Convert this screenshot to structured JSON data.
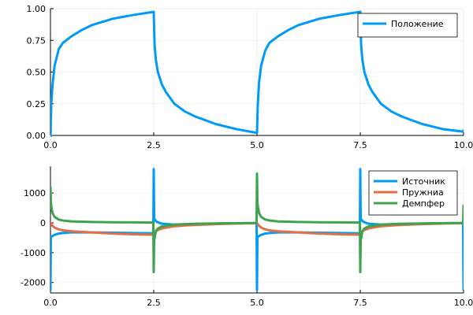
{
  "chart_data": [
    {
      "type": "line",
      "xlim": [
        0,
        10
      ],
      "ylim": [
        0,
        1
      ],
      "xticks": [
        "0.0",
        "2.5",
        "5.0",
        "7.5",
        "10.0"
      ],
      "yticks": [
        "0.00",
        "0.25",
        "0.50",
        "0.75",
        "1.00"
      ],
      "grid": true,
      "legend_position": "top-right",
      "series": [
        {
          "name": "Положение",
          "color": "#009af9",
          "x": [
            0.0,
            0.02,
            0.05,
            0.1,
            0.2,
            0.3,
            0.5,
            0.75,
            1.0,
            1.5,
            2.0,
            2.5,
            2.52,
            2.55,
            2.6,
            2.7,
            2.8,
            3.0,
            3.25,
            3.5,
            4.0,
            4.5,
            5.0,
            5.02,
            5.05,
            5.1,
            5.2,
            5.3,
            5.5,
            5.75,
            6.0,
            6.5,
            7.0,
            7.5,
            7.52,
            7.55,
            7.6,
            7.7,
            7.8,
            8.0,
            8.25,
            8.5,
            9.0,
            9.5,
            9.98,
            10.0
          ],
          "y": [
            -0.03,
            0.25,
            0.4,
            0.55,
            0.68,
            0.73,
            0.78,
            0.83,
            0.87,
            0.92,
            0.95,
            0.975,
            0.72,
            0.6,
            0.5,
            0.4,
            0.34,
            0.25,
            0.19,
            0.15,
            0.09,
            0.05,
            0.02,
            0.25,
            0.42,
            0.55,
            0.67,
            0.73,
            0.78,
            0.83,
            0.87,
            0.92,
            0.95,
            0.975,
            0.72,
            0.6,
            0.5,
            0.4,
            0.34,
            0.25,
            0.19,
            0.15,
            0.09,
            0.05,
            0.03,
            0.04
          ]
        }
      ]
    },
    {
      "type": "line",
      "xlim": [
        0,
        10
      ],
      "ylim": [
        -2350,
        1900
      ],
      "xticks": [
        "0.0",
        "2.5",
        "5.0",
        "7.5",
        "10.0"
      ],
      "yticks": [
        "-2000",
        "-1000",
        "0",
        "1000"
      ],
      "grid": true,
      "legend_position": "top-right",
      "series": [
        {
          "name": "Источник",
          "color": "#009af9",
          "x": [
            0.0,
            0.01,
            0.02,
            0.05,
            0.1,
            0.2,
            0.3,
            0.5,
            1.0,
            1.5,
            2.0,
            2.49,
            2.5,
            2.51,
            2.55,
            2.6,
            2.7,
            3.0,
            3.5,
            4.0,
            4.5,
            4.99,
            5.0,
            5.01,
            5.02,
            5.05,
            5.1,
            5.2,
            5.3,
            5.5,
            6.0,
            6.5,
            7.0,
            7.49,
            7.5,
            7.51,
            7.55,
            7.6,
            7.7,
            8.0,
            8.5,
            9.0,
            9.5,
            9.99,
            10.0
          ],
          "y": [
            -2250,
            -500,
            -470,
            -440,
            -400,
            -360,
            -340,
            -320,
            -320,
            -330,
            -340,
            -350,
            1800,
            150,
            60,
            20,
            -30,
            -60,
            -40,
            -25,
            -15,
            -10,
            -2250,
            -500,
            -470,
            -440,
            -400,
            -360,
            -340,
            -320,
            -320,
            -330,
            -340,
            -350,
            1800,
            150,
            60,
            20,
            -30,
            -60,
            -40,
            -25,
            -15,
            -10,
            -2250
          ]
        },
        {
          "name": "Пружниа",
          "color": "#e26f46",
          "x": [
            0.0,
            0.05,
            0.1,
            0.2,
            0.3,
            0.5,
            0.75,
            1.0,
            1.5,
            2.0,
            2.5,
            2.55,
            2.6,
            2.7,
            2.8,
            3.0,
            3.25,
            3.5,
            4.0,
            4.5,
            5.0,
            5.05,
            5.1,
            5.2,
            5.3,
            5.5,
            5.75,
            6.0,
            6.5,
            7.0,
            7.5,
            7.55,
            7.6,
            7.7,
            7.8,
            8.0,
            8.25,
            8.5,
            9.0,
            9.5,
            10.0
          ],
          "y": [
            0,
            -100,
            -160,
            -220,
            -250,
            -280,
            -300,
            -320,
            -360,
            -385,
            -400,
            -290,
            -240,
            -190,
            -160,
            -115,
            -90,
            -70,
            -45,
            -25,
            -10,
            -100,
            -160,
            -220,
            -250,
            -280,
            -300,
            -320,
            -360,
            -385,
            -400,
            -290,
            -240,
            -190,
            -160,
            -115,
            -90,
            -70,
            -45,
            -25,
            -10
          ]
        },
        {
          "name": "Демпфер",
          "color": "#3da44d",
          "x": [
            0.0,
            0.01,
            0.02,
            0.05,
            0.1,
            0.2,
            0.3,
            0.5,
            1.0,
            1.5,
            2.0,
            2.49,
            2.5,
            2.51,
            2.55,
            2.6,
            2.7,
            3.0,
            3.5,
            4.0,
            4.5,
            4.99,
            5.0,
            5.01,
            5.02,
            5.05,
            5.1,
            5.2,
            5.3,
            5.5,
            6.0,
            6.5,
            7.0,
            7.49,
            7.5,
            7.51,
            7.55,
            7.6,
            7.7,
            8.0,
            8.5,
            9.0,
            9.5,
            9.99,
            10.0
          ],
          "y": [
            1200,
            700,
            550,
            330,
            200,
            110,
            80,
            50,
            30,
            20,
            15,
            10,
            -1650,
            -600,
            -280,
            -190,
            -120,
            -60,
            -30,
            -20,
            -10,
            -5,
            1650,
            700,
            550,
            330,
            200,
            110,
            80,
            50,
            30,
            20,
            15,
            10,
            -1650,
            -600,
            -280,
            -190,
            -120,
            -60,
            -30,
            -20,
            -10,
            -5,
            580
          ]
        }
      ]
    }
  ]
}
